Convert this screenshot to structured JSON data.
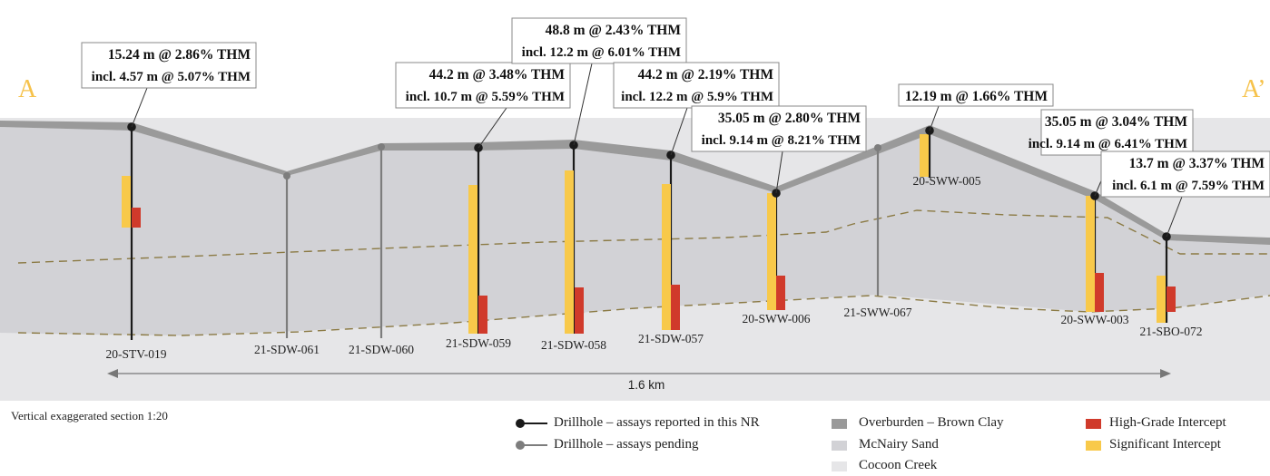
{
  "section": {
    "start_label": "A",
    "end_label": "A’"
  },
  "scale_label": "1.6 km",
  "note": "Vertical exaggerated section 1:20",
  "holes": [
    {
      "id": "20-STV-019",
      "status": "reported",
      "has_callout": true,
      "callout": [
        "15.24 m @ 2.86% THM",
        "incl. 4.57 m @ 5.07% THM"
      ]
    },
    {
      "id": "21-SDW-061",
      "status": "pending",
      "has_callout": false,
      "callout": []
    },
    {
      "id": "21-SDW-060",
      "status": "pending",
      "has_callout": false,
      "callout": []
    },
    {
      "id": "21-SDW-059",
      "status": "reported",
      "has_callout": true,
      "callout": [
        "44.2 m @ 3.48% THM",
        "incl. 10.7 m @ 5.59% THM"
      ]
    },
    {
      "id": "21-SDW-058",
      "status": "reported",
      "has_callout": true,
      "callout": [
        "48.8 m @ 2.43% THM",
        "incl. 12.2 m @ 6.01% THM"
      ]
    },
    {
      "id": "21-SDW-057",
      "status": "reported",
      "has_callout": true,
      "callout": [
        "44.2 m @ 2.19% THM",
        "incl. 12.2 m @ 5.9% THM"
      ]
    },
    {
      "id": "20-SWW-006",
      "status": "reported",
      "has_callout": true,
      "callout": [
        "35.05 m @ 2.80% THM",
        "incl. 9.14 m @ 8.21% THM"
      ]
    },
    {
      "id": "21-SWW-067",
      "status": "pending",
      "has_callout": false,
      "callout": []
    },
    {
      "id": "20-SWW-005",
      "status": "reported",
      "has_callout": true,
      "callout": [
        "12.19 m @ 1.66% THM"
      ]
    },
    {
      "id": "20-SWW-003",
      "status": "reported",
      "has_callout": true,
      "callout": [
        "35.05 m @ 3.04% THM",
        "incl. 9.14 m @ 6.41% THM"
      ]
    },
    {
      "id": "21-SBO-072",
      "status": "reported",
      "has_callout": true,
      "callout": [
        "13.7 m @ 3.37% THM",
        "incl. 6.1 m @ 7.59% THM"
      ]
    }
  ],
  "legend": {
    "drillhole_reported": "Drillhole – assays reported in this NR",
    "drillhole_pending": "Drillhole – assays pending",
    "overburden": "Overburden – Brown Clay",
    "mcnairy": "McNairy Sand",
    "cocoon": "Cocoon Creek",
    "high_grade": "High-Grade Intercept",
    "significant": "Significant Intercept"
  },
  "colors": {
    "overburden": "#9a9a9a",
    "mcnairy": "#d2d2d6",
    "cocoon": "#e6e6e8",
    "high_grade": "#d03a2b",
    "significant": "#f8c94a",
    "section_letter": "#f6c24b",
    "drill_reported": "#1a1a1a",
    "drill_pending": "#7d7d7d"
  }
}
